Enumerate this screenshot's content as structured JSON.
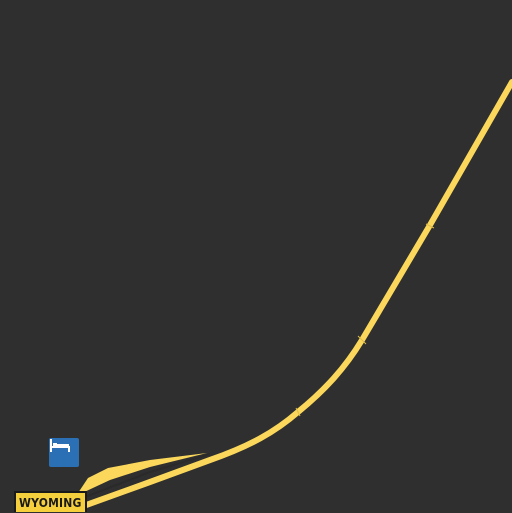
{
  "map": {
    "background_color": "#2f2f2f",
    "road_color": "#fbd85b",
    "road_casing_color": "#2a2a2a",
    "state_label": {
      "text": "WYOMING",
      "background_color": "#f5cf3c",
      "text_color": "#1a1a1a"
    },
    "poi": {
      "icon": "bed-icon",
      "category": "lodging",
      "color": "#2b6fb5"
    }
  }
}
